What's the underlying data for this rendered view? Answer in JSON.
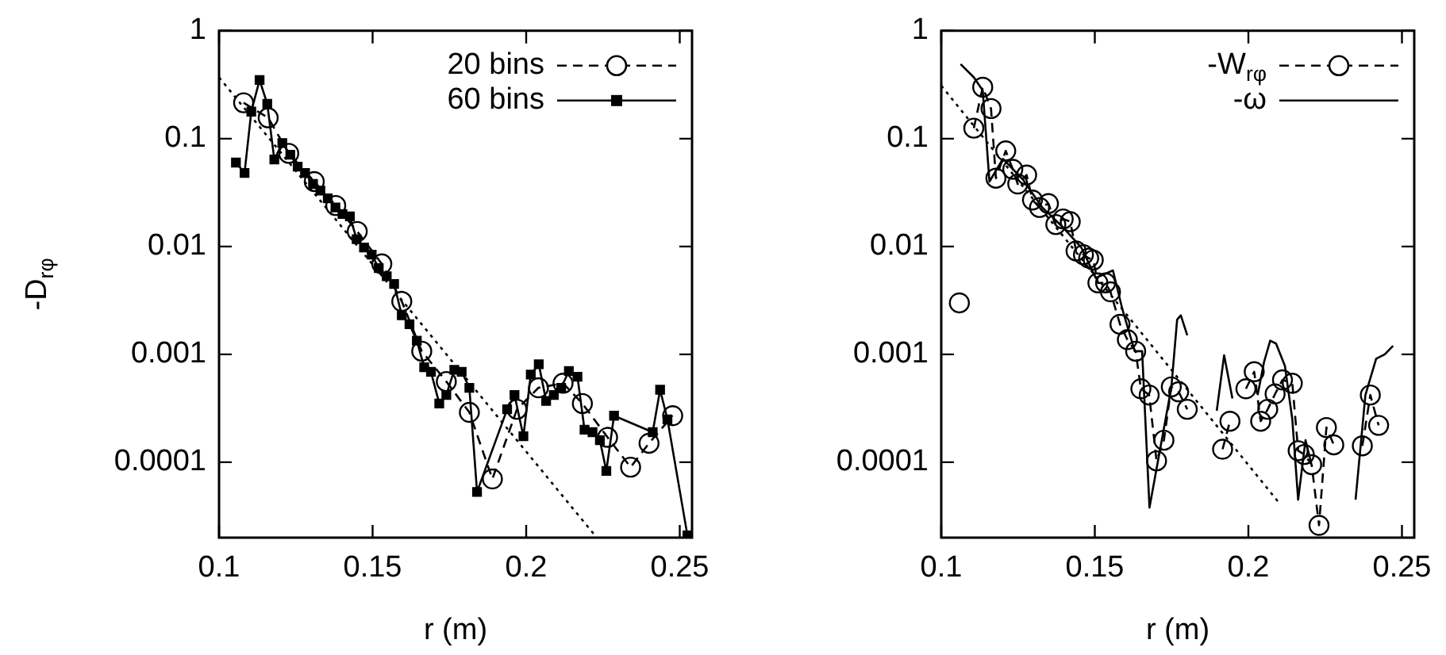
{
  "chart_data": [
    {
      "type": "line",
      "xlabel": "r (m)",
      "ylabel": "-D$_{rφ}$",
      "xlim": [
        0.1,
        0.254
      ],
      "xticks": [
        0.1,
        0.15,
        0.2,
        0.25
      ],
      "ylim": [
        2e-05,
        1
      ],
      "yticks": [
        1,
        0.1,
        0.01,
        0.001,
        0.0001
      ],
      "log": "y",
      "grid": false,
      "legend": "top right",
      "series": [
        {
          "name": "20 bins",
          "color": "#000000",
          "marker": "circle",
          "line_style": "dashed",
          "x": [
            0.108,
            0.116,
            0.1227,
            0.131,
            0.138,
            0.145,
            0.153,
            0.1595,
            0.166,
            0.174,
            0.1815,
            0.189,
            0.197,
            0.204,
            0.212,
            0.2183,
            0.2265,
            0.234,
            0.24,
            0.2477
          ],
          "values": [
            0.215,
            0.156,
            0.073,
            0.04,
            0.024,
            0.0138,
            0.0069,
            0.0031,
            0.00107,
            0.00056,
            0.00029,
            7e-05,
            0.00031,
            0.00049,
            0.00054,
            0.00035,
            0.00017,
            9e-05,
            0.00015,
            0.00027
          ]
        },
        {
          "name": "60 bins",
          "color": "#000000",
          "marker": "square",
          "line_style": "solid",
          "x": [
            0.1055,
            0.1083,
            0.1105,
            0.1132,
            0.1157,
            0.118,
            0.1206,
            0.1232,
            0.1256,
            0.128,
            0.1306,
            0.133,
            0.1354,
            0.1379,
            0.1402,
            0.1426,
            0.1448,
            0.1472,
            0.1497,
            0.152,
            0.1546,
            0.157,
            0.1595,
            0.162,
            0.1644,
            0.1668,
            0.169,
            0.1717,
            0.174,
            0.1766,
            0.179,
            0.1815,
            0.184,
            0.1938,
            0.1962,
            0.1991,
            0.2015,
            0.2041,
            0.2065,
            0.209,
            0.2114,
            0.2139,
            0.2167,
            0.219,
            0.2216,
            0.224,
            0.2261,
            0.2286,
            0.2412,
            0.2436,
            0.246,
            0.2525
          ],
          "values": [
            0.06,
            0.048,
            0.178,
            0.35,
            0.21,
            0.064,
            0.091,
            0.071,
            0.055,
            0.048,
            0.038,
            0.033,
            0.028,
            0.023,
            0.02,
            0.019,
            0.0117,
            0.0098,
            0.0084,
            0.0063,
            0.0053,
            0.0045,
            0.0023,
            0.0019,
            0.00134,
            0.00076,
            0.00069,
            0.00035,
            0.00042,
            0.00072,
            0.00069,
            0.00049,
            5.3e-05,
            0.00031,
            0.00042,
            0.000174,
            0.00065,
            0.00081,
            0.00037,
            0.00042,
            0.00049,
            0.0007,
            0.00062,
            0.0002,
            0.00019,
            0.00016,
            8.3e-05,
            0.00027,
            0.00019,
            0.00047,
            0.00025,
            2.1e-05
          ]
        },
        {
          "type": "line",
          "color": "#000000",
          "marker": "none",
          "line_style": "dotted",
          "x": [
            0.1,
            0.223
          ],
          "values": [
            0.37,
            2e-05
          ]
        }
      ]
    },
    {
      "type": "line",
      "xlabel": "r (m)",
      "xlim": [
        0.1,
        0.254
      ],
      "xticks": [
        0.1,
        0.15,
        0.2,
        0.25
      ],
      "ylim": [
        2e-05,
        1
      ],
      "yticks": [
        1,
        0.1,
        0.01,
        0.001,
        0.0001
      ],
      "log": "y",
      "grid": false,
      "legend": "top right",
      "series": [
        {
          "name": "-W$_{rφ}$",
          "color": "#000000",
          "marker": "circle",
          "line_style": "dashed",
          "x": [
            0.1059,
            0.108,
            0.1106,
            0.1135,
            0.1162,
            0.1178,
            0.121,
            0.1233,
            0.1249,
            0.1278,
            0.1297,
            0.132,
            0.1349,
            0.1373,
            0.1397,
            0.142,
            0.1439,
            0.1463,
            0.148,
            0.1495,
            0.151,
            0.1535,
            0.1551,
            0.1582,
            0.1606,
            0.1633,
            0.165,
            0.1677,
            0.1701,
            0.1725,
            0.1749,
            0.1773,
            0.1801,
            0.186,
            0.1916,
            0.194,
            0.197,
            0.1992,
            0.2019,
            0.204,
            0.2063,
            0.2087,
            0.2111,
            0.2143,
            0.2162,
            0.2182,
            0.2206,
            0.223,
            0.2254,
            0.2278,
            0.232,
            0.2371,
            0.2397,
            0.2424
          ],
          "values": [
            0.003,
            null,
            0.125,
            0.3,
            0.19,
            0.043,
            0.077,
            0.052,
            0.038,
            0.046,
            0.027,
            0.023,
            0.025,
            0.016,
            0.018,
            0.017,
            0.0091,
            0.0084,
            0.0078,
            0.0075,
            0.0046,
            0.0046,
            0.0038,
            0.0019,
            0.00137,
            0.00107,
            0.00048,
            0.00042,
            0.000103,
            0.00016,
            0.0005,
            0.00045,
            0.00031,
            null,
            0.000132,
            0.00024,
            null,
            0.00048,
            0.00069,
            0.00024,
            0.00031,
            0.00043,
            0.00058,
            0.00054,
            0.000128,
            0.000118,
            9.5e-05,
            2.6e-05,
            0.00021,
            0.000145,
            null,
            0.000142,
            0.00042,
            0.00022
          ]
        },
        {
          "name": "-ω",
          "color": "#000000",
          "marker": "none",
          "line_style": "solid",
          "x": [
            0.1063,
            0.1106,
            0.1135,
            0.1157,
            0.1201,
            0.1265,
            0.1329,
            0.1392,
            0.1456,
            0.1503,
            0.1559,
            0.159,
            0.163,
            0.1654,
            0.1678,
            0.1749,
            0.1768,
            0.178,
            0.1801,
            0.185,
            0.1897,
            0.1921,
            0.1948,
            0.196,
            0.198,
            0.1995,
            0.203,
            0.2051,
            0.2071,
            0.209,
            0.2119,
            0.2143,
            0.2162,
            0.2186,
            0.2205,
            0.228,
            0.2349,
            0.2381,
            0.2416,
            0.2444,
            0.2471
          ],
          "values": [
            0.49,
            0.37,
            0.28,
            0.04,
            0.065,
            0.042,
            0.023,
            0.0155,
            0.0098,
            0.0051,
            0.006,
            0.0026,
            0.00107,
            0.00107,
            3.8e-05,
            0.00049,
            0.0021,
            0.0023,
            0.0015,
            null,
            0.0003,
            0.00098,
            0.00039,
            null,
            null,
            null,
            0.00042,
            0.00085,
            0.00134,
            0.00126,
            0.00078,
            0.00025,
            4.5e-05,
            0.00016,
            9.7e-05,
            null,
            4.5e-05,
            0.00042,
            0.00091,
            0.001,
            0.0012
          ]
        },
        {
          "type": "line",
          "color": "#000000",
          "marker": "none",
          "line_style": "dotted",
          "x": [
            0.1,
            0.21
          ],
          "values": [
            0.31,
            4.2e-05
          ]
        }
      ]
    }
  ]
}
